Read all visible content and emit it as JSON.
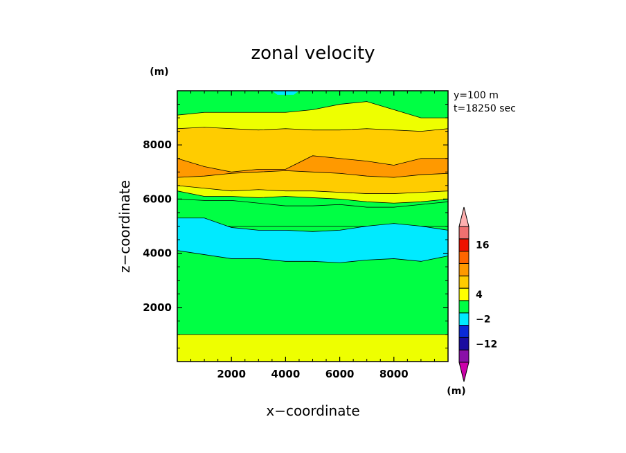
{
  "chart_data": {
    "type": "contour",
    "title": "zonal velocity",
    "xlabel": "x−coordinate",
    "ylabel": "z−coordinate",
    "x_unit": "(m)",
    "y_unit": "(m)",
    "annotations": [
      "y=100 m",
      "t=18250 sec"
    ],
    "xlim": [
      0,
      10000
    ],
    "ylim": [
      0,
      10000
    ],
    "x_ticks": [
      2000,
      4000,
      6000,
      8000
    ],
    "y_ticks": [
      2000,
      4000,
      6000,
      8000
    ],
    "colorbar": {
      "unit": "(m)",
      "tick_labels": [
        {
          "value": 16,
          "label": "16"
        },
        {
          "value": 4,
          "label": "4"
        },
        {
          "value": -2,
          "label": "−2"
        },
        {
          "value": -12,
          "label": "−12"
        }
      ],
      "colors": [
        "#cc00aa",
        "#8a10a8",
        "#1a0ca0",
        "#0a2ad8",
        "#00eaff",
        "#00ff44",
        "#ffff00",
        "#ffcc00",
        "#ff9900",
        "#ff6600",
        "#ee1100",
        "#f07070",
        "#ffb0b0"
      ]
    },
    "regions": [
      {
        "level": "[-2,4) green",
        "color": "#00ff44"
      },
      {
        "level": "[4,8) yellow",
        "color": "#eeff00"
      },
      {
        "level": "[8,12) gold",
        "color": "#ffcc00"
      },
      {
        "level": "[12,16) orange",
        "color": "#ff9900"
      },
      {
        "level": "[-6,-2) cyan",
        "color": "#00eaff"
      }
    ]
  }
}
